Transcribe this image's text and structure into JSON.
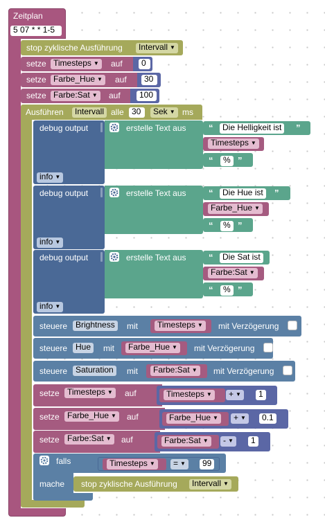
{
  "colors": {
    "event": "#a8567f",
    "olive": "#a5a95b",
    "variable": "#a55b80",
    "text": "#5ba58c",
    "logic": "#5b80a5",
    "debug": "#4a6996",
    "io": "#5b67a5"
  },
  "icons": {
    "gear": "gear-icon",
    "dropdown": "dropdown-arrow-icon",
    "quote_open": "quote-open-icon",
    "quote_close": "quote-close-icon"
  },
  "schedule": {
    "label": "Zeitplan",
    "cron": "5 07 * * 1-5"
  },
  "stop1": {
    "label": "stop zyklische Ausführung",
    "target": "Intervall"
  },
  "set_timesteps": {
    "label": "setze",
    "var": "Timesteps",
    "on": "auf",
    "value": "0"
  },
  "set_hue": {
    "label": "setze",
    "var": "Farbe_Hue",
    "on": "auf",
    "value": "30"
  },
  "set_sat": {
    "label": "setze",
    "var": "Farbe:Sat",
    "on": "auf",
    "value": "100"
  },
  "interval": {
    "label": "Ausführen",
    "name": "Intervall",
    "every": "alle",
    "value": "30",
    "unit": "Sek",
    "ms": "ms"
  },
  "debug": [
    {
      "label": "debug output",
      "create": "erstelle Text aus",
      "text": "Die Helligkeit ist",
      "var": "Timesteps",
      "suffix": "%",
      "level": "info"
    },
    {
      "label": "debug output",
      "create": "erstelle Text aus",
      "text": "Die Hue ist",
      "var": "Farbe_Hue",
      "suffix": "%",
      "level": "info"
    },
    {
      "label": "debug output",
      "create": "erstelle Text aus",
      "text": "Die Sat ist",
      "var": "Farbe:Sat",
      "suffix": "%",
      "level": "info"
    }
  ],
  "control": [
    {
      "label": "steuere",
      "target": "Brightness",
      "with": "mit",
      "var": "Timesteps",
      "delay": "mit Verzögerung"
    },
    {
      "label": "steuere",
      "target": "Hue",
      "with": "mit",
      "var": "Farbe_Hue",
      "delay": "mit Verzögerung"
    },
    {
      "label": "steuere",
      "target": "Saturation",
      "with": "mit",
      "var": "Farbe:Sat",
      "delay": "mit Verzögerung"
    }
  ],
  "update": [
    {
      "label": "setze",
      "var": "Timesteps",
      "on": "auf",
      "source": "Timesteps",
      "op": "+",
      "value": "1"
    },
    {
      "label": "setze",
      "var": "Farbe_Hue",
      "on": "auf",
      "source": "Farbe_Hue",
      "op": "+",
      "value": "0.1"
    },
    {
      "label": "setze",
      "var": "Farbe:Sat",
      "on": "auf",
      "source": "Farbe:Sat",
      "op": "-",
      "value": "1"
    }
  ],
  "if_block": {
    "if": "falls",
    "var": "Timesteps",
    "op": "=",
    "value": "99",
    "do": "mache",
    "stop_label": "stop zyklische Ausführung",
    "stop_target": "Intervall"
  }
}
